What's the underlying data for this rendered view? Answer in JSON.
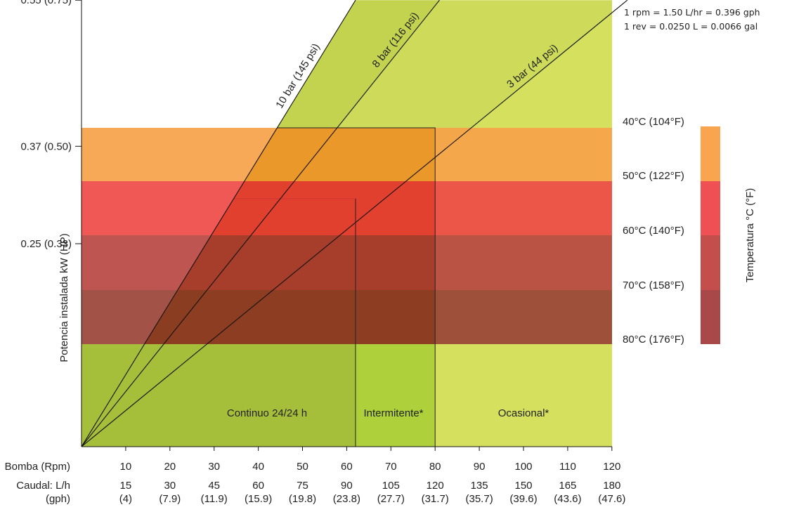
{
  "chart_data": {
    "type": "area",
    "title": "",
    "notes": [
      "1 rpm = 1.50 L/hr = 0.396 gph",
      "1 rev = 0.0250 L = 0.0066 gal"
    ],
    "ylabel": "Potencia instalada kW (HP)",
    "y_ticks": [
      {
        "value": 0.55,
        "label": "0.55 (0.75)"
      },
      {
        "value": 0.37,
        "label": "0.37 (0.50)"
      },
      {
        "value": 0.25,
        "label": "0.25 (0.33)"
      }
    ],
    "x_rows": [
      {
        "label": "Bomba (Rpm)",
        "values": [
          "10",
          "20",
          "30",
          "40",
          "50",
          "60",
          "70",
          "80",
          "90",
          "100",
          "110",
          "120"
        ]
      },
      {
        "label": "Caudal: L/h",
        "values": [
          "15",
          "30",
          "45",
          "60",
          "75",
          "90",
          "105",
          "120",
          "135",
          "150",
          "165",
          "180"
        ]
      },
      {
        "label": "(gph)",
        "values": [
          "(4)",
          "(7.9)",
          "(11.9)",
          "(15.9)",
          "(19.8)",
          "(23.8)",
          "(27.7)",
          "(31.7)",
          "(35.7)",
          "(39.6)",
          "(43.6)",
          "(47.6)"
        ]
      }
    ],
    "xlim_rpm": [
      0,
      120
    ],
    "pressure_lines": [
      {
        "label": "10 bar (145 psi)",
        "rpm_at_055kw": 62
      },
      {
        "label": "8 bar (116 psi)",
        "rpm_at_055kw": 81
      },
      {
        "label": "3 bar (44 psi)",
        "rpm_at_055kw": 123.5
      }
    ],
    "duty_zones": [
      {
        "label": "Continuo 24/24 h",
        "rpm_range": [
          0,
          62
        ],
        "color": "#a6bf3a"
      },
      {
        "label": "Intermitente*",
        "rpm_range": [
          62,
          80
        ],
        "color": "#aed03a"
      },
      {
        "label": "Ocasional*",
        "rpm_range": [
          80,
          120
        ],
        "color": "#d4e05e"
      }
    ],
    "temperature_bands": [
      {
        "label": "40°C (104°F)",
        "color": "#f9a550"
      },
      {
        "label": "50°C (122°F)",
        "color": "#ee5054"
      },
      {
        "label": "60°C (140°F)",
        "color": "#c34e4c"
      },
      {
        "label": "70°C (158°F)",
        "color": "#a84848"
      },
      {
        "label": "80°C (176°F)",
        "color": ""
      }
    ],
    "temperature_axis_label": "Temperatura °C (°F)",
    "grid": false
  }
}
